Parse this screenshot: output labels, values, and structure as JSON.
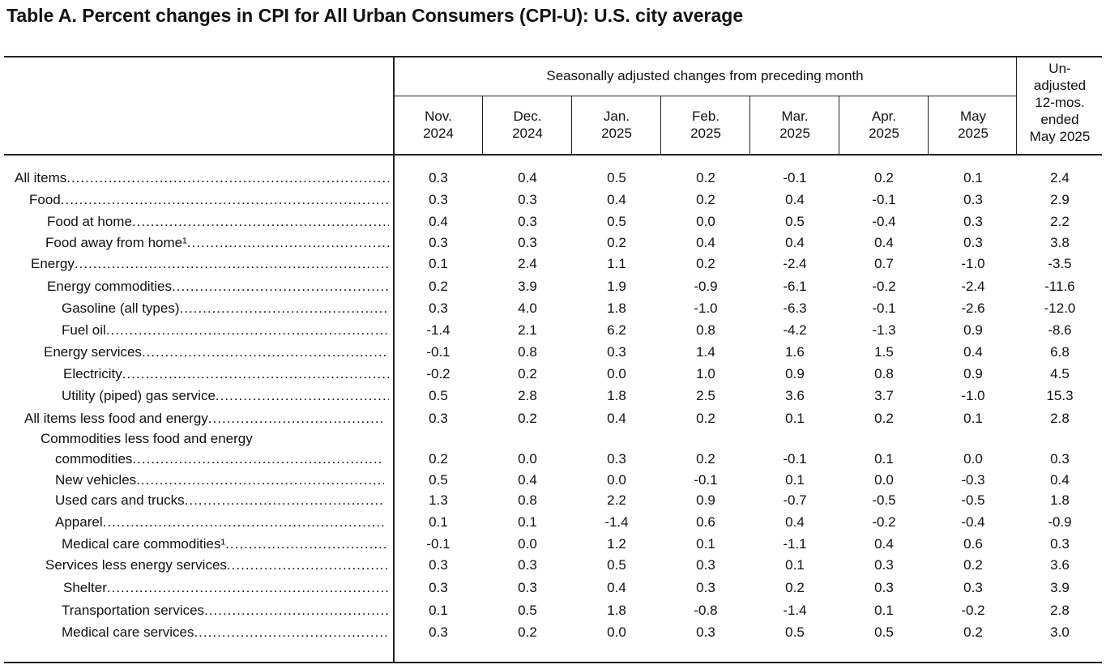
{
  "title": "Table A. Percent changes in CPI for All Urban Consumers (CPI-U): U.S. city average",
  "header": {
    "span_label": "Seasonally adjusted changes from preceding month",
    "months": [
      {
        "line1": "Nov.",
        "line2": "2024"
      },
      {
        "line1": "Dec.",
        "line2": "2024"
      },
      {
        "line1": "Jan.",
        "line2": "2025"
      },
      {
        "line1": "Feb.",
        "line2": "2025"
      },
      {
        "line1": "Mar.",
        "line2": "2025"
      },
      {
        "line1": "Apr.",
        "line2": "2025"
      },
      {
        "line1": "May",
        "line2": "2025"
      }
    ],
    "unadjusted": [
      "Un-",
      "adjusted",
      "12-mos.",
      "ended",
      "May 2025"
    ]
  },
  "rows": [
    {
      "label": "All items",
      "values": [
        "0.3",
        "0.4",
        "0.5",
        "0.2",
        "-0.1",
        "0.2",
        "0.1",
        "2.4"
      ]
    },
    {
      "label": "Food",
      "values": [
        "0.3",
        "0.3",
        "0.4",
        "0.2",
        "0.4",
        "-0.1",
        "0.3",
        "2.9"
      ]
    },
    {
      "label": "Food at home",
      "values": [
        "0.4",
        "0.3",
        "0.5",
        "0.0",
        "0.5",
        "-0.4",
        "0.3",
        "2.2"
      ]
    },
    {
      "label": "Food away from home¹",
      "values": [
        "0.3",
        "0.3",
        "0.2",
        "0.4",
        "0.4",
        "0.4",
        "0.3",
        "3.8"
      ]
    },
    {
      "label": "Energy",
      "values": [
        "0.1",
        "2.4",
        "1.1",
        "0.2",
        "-2.4",
        "0.7",
        "-1.0",
        "-3.5"
      ]
    },
    {
      "label": "Energy commodities",
      "values": [
        "0.2",
        "3.9",
        "1.9",
        "-0.9",
        "-6.1",
        "-0.2",
        "-2.4",
        "-11.6"
      ]
    },
    {
      "label": "Gasoline (all types)",
      "values": [
        "0.3",
        "4.0",
        "1.8",
        "-1.0",
        "-6.3",
        "-0.1",
        "-2.6",
        "-12.0"
      ]
    },
    {
      "label": "Fuel oil",
      "values": [
        "-1.4",
        "2.1",
        "6.2",
        "0.8",
        "-4.2",
        "-1.3",
        "0.9",
        "-8.6"
      ]
    },
    {
      "label": "Energy services",
      "values": [
        "-0.1",
        "0.8",
        "0.3",
        "1.4",
        "1.6",
        "1.5",
        "0.4",
        "6.8"
      ]
    },
    {
      "label": "Electricity",
      "values": [
        "-0.2",
        "0.2",
        "0.0",
        "1.0",
        "0.9",
        "0.8",
        "0.9",
        "4.5"
      ]
    },
    {
      "label": "Utility (piped) gas service",
      "values": [
        "0.5",
        "2.8",
        "1.8",
        "2.5",
        "3.6",
        "3.7",
        "-1.0",
        "15.3"
      ]
    },
    {
      "label": "All items less food and energy",
      "values": [
        "0.3",
        "0.2",
        "0.4",
        "0.2",
        "0.1",
        "0.2",
        "0.1",
        "2.8"
      ]
    },
    {
      "label_line1": "Commodities less food and energy",
      "label": "commodities",
      "values": [
        "0.2",
        "0.0",
        "0.3",
        "0.2",
        "-0.1",
        "0.1",
        "0.0",
        "0.3"
      ]
    },
    {
      "label": "New vehicles",
      "values": [
        "0.5",
        "0.4",
        "0.0",
        "-0.1",
        "0.1",
        "0.0",
        "-0.3",
        "0.4"
      ]
    },
    {
      "label": "Used cars and trucks",
      "values": [
        "1.3",
        "0.8",
        "2.2",
        "0.9",
        "-0.7",
        "-0.5",
        "-0.5",
        "1.8"
      ]
    },
    {
      "label": "Apparel",
      "values": [
        "0.1",
        "0.1",
        "-1.4",
        "0.6",
        "0.4",
        "-0.2",
        "-0.4",
        "-0.9"
      ]
    },
    {
      "label": "Medical care commodities¹",
      "values": [
        "-0.1",
        "0.0",
        "1.2",
        "0.1",
        "-1.1",
        "0.4",
        "0.6",
        "0.3"
      ]
    },
    {
      "label": "Services less energy services",
      "values": [
        "0.3",
        "0.3",
        "0.5",
        "0.3",
        "0.1",
        "0.3",
        "0.2",
        "3.6"
      ]
    },
    {
      "label": "Shelter",
      "values": [
        "0.3",
        "0.3",
        "0.4",
        "0.3",
        "0.2",
        "0.3",
        "0.3",
        "3.9"
      ]
    },
    {
      "label": "Transportation services",
      "values": [
        "0.1",
        "0.5",
        "1.8",
        "-0.8",
        "-1.4",
        "0.1",
        "-0.2",
        "2.8"
      ]
    },
    {
      "label": "Medical care services",
      "values": [
        "0.3",
        "0.2",
        "0.0",
        "0.3",
        "0.5",
        "0.5",
        "0.2",
        "3.0"
      ]
    }
  ]
}
